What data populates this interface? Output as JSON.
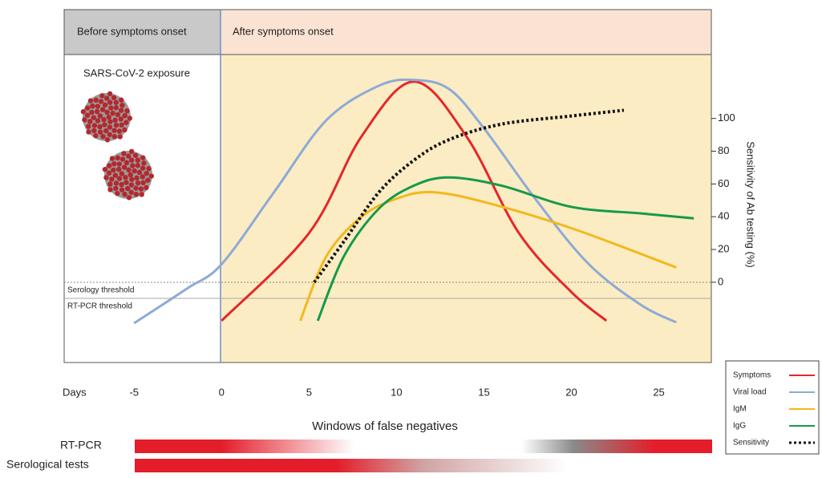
{
  "chart_data": {
    "type": "line",
    "panels": [
      "Before symptoms onset",
      "After symptoms onset"
    ],
    "exposure_label": "SARS-CoV-2 exposure",
    "thresholds": [
      "Serology threshold",
      "RT-PCR threshold"
    ],
    "xlabel": "Days",
    "ylabel": "Sensitivity of Ab testing (%)",
    "xlim": [
      -9,
      28
    ],
    "xticks": [
      -5,
      0,
      5,
      10,
      15,
      20,
      25
    ],
    "ylim": [
      -49,
      139
    ],
    "yticks": [
      0,
      20,
      40,
      60,
      80,
      100
    ],
    "series": [
      {
        "name": "Symptoms",
        "color": "#e5262b",
        "x": [
          0,
          5,
          8,
          11,
          14,
          17,
          20,
          22
        ],
        "values": [
          -23.5,
          30,
          89,
          122.5,
          89,
          30,
          -6,
          -23.5
        ]
      },
      {
        "name": "Viral load",
        "color": "#8eaad6",
        "x": [
          -5,
          -2,
          0,
          3,
          6,
          9,
          11,
          13,
          15,
          18,
          21,
          24,
          26
        ],
        "values": [
          -25,
          -4,
          11,
          55,
          99,
          120,
          123.5,
          118,
          94,
          50,
          11,
          -14,
          -24.5
        ]
      },
      {
        "name": "IgM",
        "color": "#f2b81c",
        "x": [
          4.5,
          6,
          8,
          10,
          12,
          15,
          20,
          26
        ],
        "values": [
          -23.5,
          16,
          40,
          51,
          55,
          49,
          33,
          9
        ]
      },
      {
        "name": "IgG",
        "color": "#17994a",
        "x": [
          5.5,
          7,
          9,
          11,
          13,
          16,
          20,
          24,
          27
        ],
        "values": [
          -23.5,
          16,
          45,
          59,
          64,
          59,
          46,
          42,
          39
        ]
      },
      {
        "name": "Sensitivity",
        "color": "#111111",
        "dashed": true,
        "x": [
          5.3,
          7,
          9,
          11,
          13,
          16,
          20,
          23
        ],
        "values": [
          0,
          25,
          55,
          74.5,
          87,
          96.5,
          101.5,
          105
        ]
      }
    ],
    "windows_title": "Windows of false negatives",
    "tests": [
      "RT-PCR",
      "Serological tests"
    ]
  }
}
